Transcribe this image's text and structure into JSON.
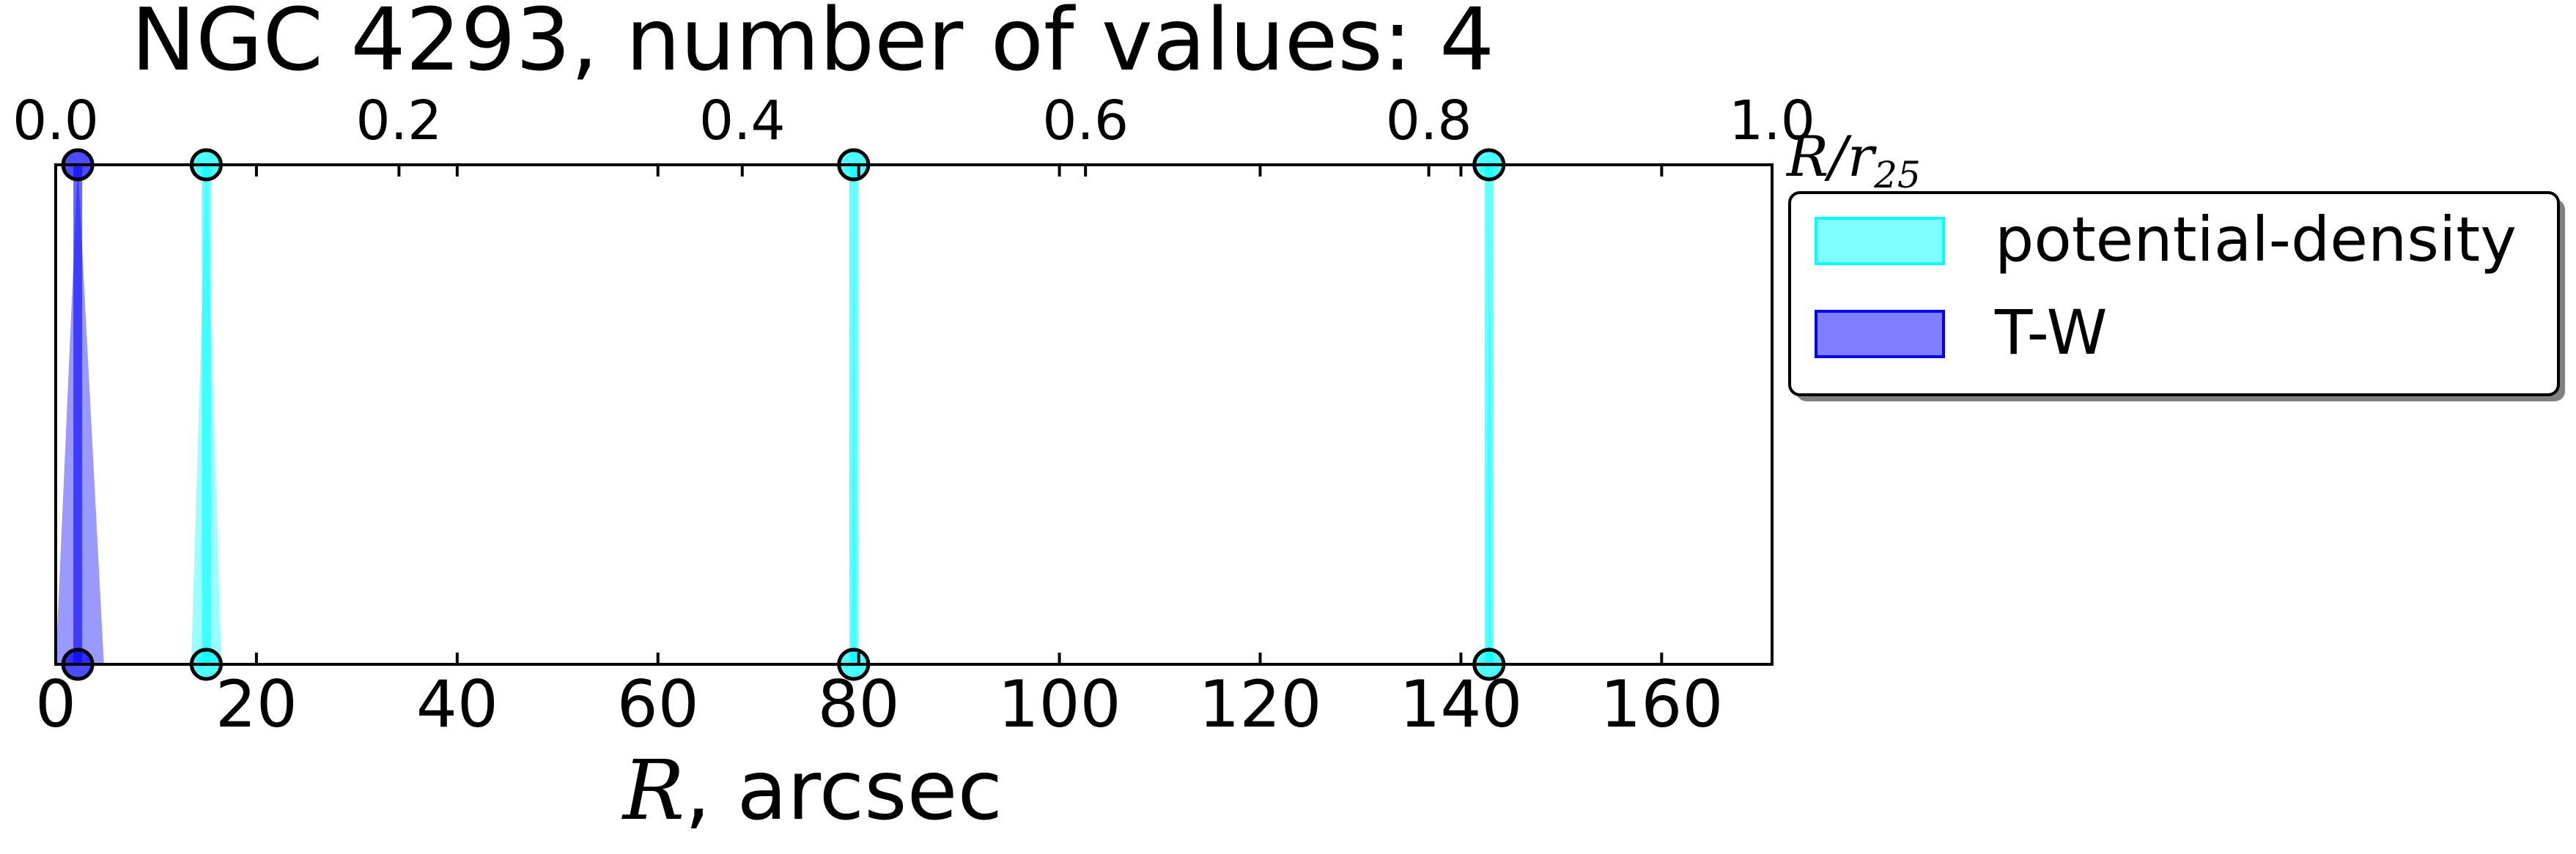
{
  "chart_data": {
    "type": "scatter",
    "title": "NGC 4293, number of values: 4",
    "xlabel_var": "R",
    "xlabel_unit": ", arcsec",
    "top_xlabel_base": "R/r",
    "top_xlabel_sub": "25",
    "xlim": [
      0,
      171
    ],
    "top_xlim": [
      0.0,
      1.0
    ],
    "ylim": [
      0,
      1
    ],
    "x_ticks": [
      "0",
      "20",
      "40",
      "60",
      "80",
      "100",
      "120",
      "140",
      "160"
    ],
    "top_ticks": [
      "0.0",
      "0.2",
      "0.4",
      "0.6",
      "0.8",
      "1.0"
    ],
    "legend_position": "outside-right",
    "grid": false,
    "series": [
      {
        "name": "potential-density",
        "color": "#00ffff",
        "fill_alpha": 0.5,
        "points": [
          {
            "x": 15.0,
            "lo": 13.5,
            "hi": 16.5
          },
          {
            "x": 79.5,
            "lo": 79.3,
            "hi": 79.7
          },
          {
            "x": 142.8,
            "lo": 142.6,
            "hi": 143.0
          }
        ]
      },
      {
        "name": "T-W",
        "color": "#0000ff",
        "fill_alpha": 0.5,
        "points": [
          {
            "x": 2.2,
            "lo": 0.0,
            "hi": 4.8
          }
        ]
      }
    ]
  }
}
